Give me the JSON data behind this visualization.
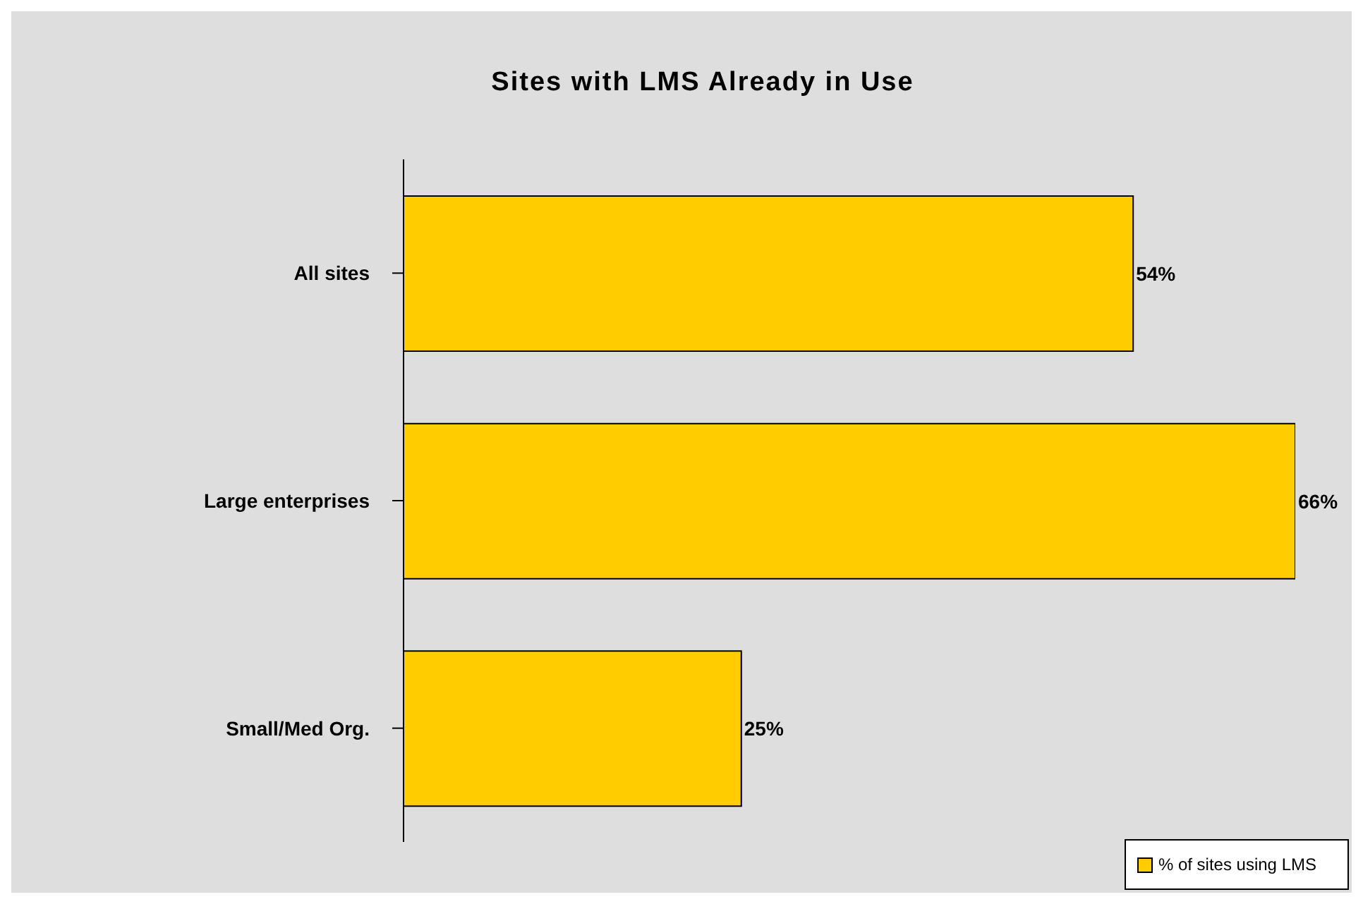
{
  "chart_data": {
    "type": "bar",
    "orientation": "horizontal",
    "title": "Sites with LMS Already in Use",
    "categories": [
      "All sites",
      "Large enterprises",
      "Small/Med Org."
    ],
    "series": [
      {
        "name": "% of sites using LMS",
        "color": "#ffcc00",
        "values": [
          54,
          66,
          25
        ],
        "value_labels": [
          "54%",
          "66%",
          "25%"
        ]
      }
    ],
    "legend": "bottom right",
    "tick_labels": "y"
  }
}
